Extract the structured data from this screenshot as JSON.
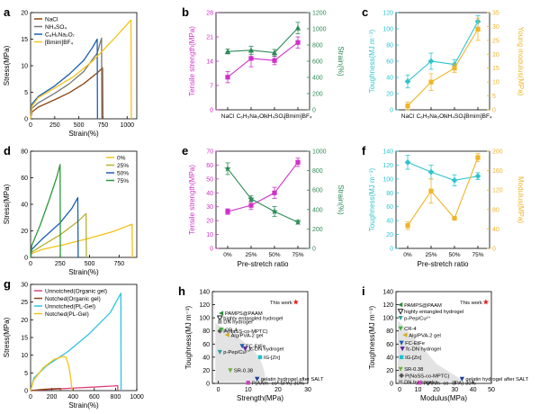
{
  "chart_data": [
    {
      "panel": "a",
      "type": "line",
      "xlabel": "Strain(%)",
      "ylabel": "Stress(MPa)",
      "xlim": [
        0,
        1100
      ],
      "ylim": [
        0,
        20
      ],
      "xticks": [
        0,
        250,
        500,
        750,
        1000
      ],
      "yticks": [
        0,
        5,
        10,
        15,
        20
      ],
      "legend": "top-left",
      "series": [
        {
          "name": "NaCl",
          "color": "#8b4513",
          "x": [
            0,
            15,
            80,
            250,
            400,
            550,
            700,
            745,
            748
          ],
          "y": [
            0,
            1.3,
            2.2,
            3.6,
            4.9,
            6.6,
            8.8,
            9.6,
            0
          ]
        },
        {
          "name": "NH₄SO₄",
          "color": "#777777",
          "x": [
            0,
            15,
            80,
            250,
            400,
            550,
            690,
            735,
            738
          ],
          "y": [
            0,
            2.0,
            3.0,
            4.8,
            6.6,
            8.9,
            12.4,
            15.2,
            0
          ]
        },
        {
          "name": "C₆H₅Na₃O₇",
          "color": "#1a5fb4",
          "x": [
            0,
            15,
            80,
            250,
            400,
            550,
            640,
            690,
            693
          ],
          "y": [
            0,
            2.8,
            4.2,
            6.2,
            8.4,
            11.0,
            13.4,
            15.0,
            0
          ]
        },
        {
          "name": "[Bmim]BF₄",
          "color": "#f5c218",
          "x": [
            0,
            15,
            80,
            250,
            450,
            650,
            850,
            1000,
            1040,
            1043
          ],
          "y": [
            0,
            2.4,
            4.0,
            5.8,
            8.0,
            11.0,
            14.8,
            17.8,
            18.6,
            0
          ]
        }
      ]
    },
    {
      "panel": "b",
      "type": "line",
      "categories": [
        "NaCl",
        "C₆H₅Na₃O₇",
        "NH₄SO₄",
        "[Bmim]BF₄"
      ],
      "ylabel": "Tensile strength(MPa)",
      "y2label": "Strain(%)",
      "ylim": [
        0,
        28
      ],
      "y2lim": [
        0,
        1200
      ],
      "yticks": [
        0,
        7,
        14,
        21,
        28
      ],
      "y2ticks": [
        0,
        200,
        400,
        600,
        800,
        1000,
        1200
      ],
      "series": [
        {
          "name": "Tensile strength",
          "axis": "left",
          "color": "#d030c8",
          "marker": "square",
          "values": [
            9.4,
            14.8,
            14.2,
            19.4
          ],
          "errors": [
            1.6,
            2.4,
            1.2,
            1.6
          ]
        },
        {
          "name": "Strain",
          "axis": "right",
          "color": "#2e8b57",
          "marker": "triangle",
          "values": [
            720,
            735,
            705,
            1010
          ],
          "errors": [
            30,
            50,
            40,
            70
          ]
        }
      ]
    },
    {
      "panel": "c",
      "type": "line",
      "categories": [
        "NaCl",
        "C₆H₅Na₃O₇",
        "NH₄SO₄",
        "[Bmim]BF₄"
      ],
      "ylabel": "Toughness(MJ m⁻³)",
      "y2label": "Young modulus(MPa)",
      "ylim": [
        0,
        120
      ],
      "y2lim": [
        0,
        35
      ],
      "yticks": [
        0,
        20,
        40,
        60,
        80,
        100,
        120
      ],
      "y2ticks": [
        0,
        5,
        10,
        15,
        20,
        25,
        30,
        35
      ],
      "series": [
        {
          "name": "Toughness",
          "axis": "left",
          "color": "#2ec4d0",
          "marker": "diamond",
          "values": [
            35,
            60,
            56,
            109
          ],
          "errors": [
            8,
            10,
            6,
            7
          ]
        },
        {
          "name": "Young modulus",
          "axis": "right",
          "color": "#f0b428",
          "marker": "square",
          "values": [
            1.4,
            10,
            15,
            29
          ],
          "errors": [
            1.4,
            3,
            1.5,
            4
          ]
        }
      ]
    },
    {
      "panel": "d",
      "type": "line",
      "xlabel": "Strain(%)",
      "ylabel": "Stress(MPa)",
      "xlim": [
        0,
        900
      ],
      "ylim": [
        0,
        80
      ],
      "xticks": [
        0,
        250,
        500,
        750
      ],
      "yticks": [
        0,
        20,
        40,
        60,
        80
      ],
      "legend": "top-right",
      "series": [
        {
          "name": "0%",
          "color": "#f5c218",
          "x": [
            0,
            10,
            100,
            300,
            500,
            700,
            860,
            863
          ],
          "y": [
            0,
            3,
            6,
            10,
            14.5,
            19.5,
            25,
            0
          ]
        },
        {
          "name": "25%",
          "color": "#b8b030",
          "x": [
            0,
            10,
            100,
            250,
            400,
            470,
            473
          ],
          "y": [
            0,
            4,
            9,
            17,
            27,
            33,
            0
          ]
        },
        {
          "name": "50%",
          "color": "#1a5fb4",
          "x": [
            0,
            10,
            100,
            250,
            350,
            400,
            403
          ],
          "y": [
            0,
            6,
            14,
            26,
            37,
            45,
            0
          ]
        },
        {
          "name": "75%",
          "color": "#2a9a3a",
          "x": [
            0,
            10,
            80,
            160,
            220,
            250,
            252
          ],
          "y": [
            0,
            9,
            24,
            44,
            60,
            70,
            0
          ]
        }
      ]
    },
    {
      "panel": "e",
      "type": "line",
      "categories": [
        "0%",
        "25%",
        "50%",
        "75%"
      ],
      "xlabel": "Pre-stretch ratio",
      "ylabel": "Tensile strength(MPa)",
      "y2label": "Strain(%)",
      "ylim": [
        0,
        70
      ],
      "y2lim": [
        0,
        1000
      ],
      "yticks": [
        0,
        10,
        20,
        30,
        40,
        50,
        60,
        70
      ],
      "y2ticks": [
        0,
        200,
        400,
        600,
        800,
        1000
      ],
      "series": [
        {
          "name": "Tensile strength",
          "axis": "left",
          "color": "#d030c8",
          "marker": "square",
          "values": [
            26.5,
            31,
            40,
            62
          ],
          "errors": [
            2,
            3,
            4,
            3
          ]
        },
        {
          "name": "Strain",
          "axis": "right",
          "color": "#2e8b57",
          "marker": "star",
          "values": [
            820,
            510,
            380,
            270
          ],
          "errors": [
            60,
            30,
            50,
            20
          ]
        }
      ]
    },
    {
      "panel": "f",
      "type": "line",
      "categories": [
        "0%",
        "25%",
        "50%",
        "75%"
      ],
      "xlabel": "Pre-stretch ratio",
      "ylabel": "Toughness(MJ m⁻³)",
      "y2label": "Modulus(MPa)",
      "ylim": [
        0,
        140
      ],
      "y2lim": [
        0,
        200
      ],
      "yticks": [
        0,
        20,
        40,
        60,
        80,
        100,
        120,
        140
      ],
      "y2ticks": [
        0,
        40,
        80,
        120,
        160,
        200
      ],
      "series": [
        {
          "name": "Toughness",
          "axis": "left",
          "color": "#2ec4d0",
          "marker": "diamond",
          "values": [
            124,
            110,
            98,
            104
          ],
          "errors": [
            10,
            10,
            8,
            5
          ]
        },
        {
          "name": "Modulus",
          "axis": "right",
          "color": "#f0b428",
          "marker": "square",
          "values": [
            47,
            118,
            62,
            187
          ],
          "errors": [
            8,
            25,
            3,
            8
          ]
        }
      ]
    },
    {
      "panel": "g",
      "type": "line",
      "xlabel": "Strain(%)",
      "ylabel": "Stress(MPa)",
      "xlim": [
        0,
        1000
      ],
      "ylim": [
        0,
        30
      ],
      "xticks": [
        0,
        200,
        400,
        600,
        800,
        1000
      ],
      "yticks": [
        0,
        5,
        10,
        15,
        20,
        25,
        30
      ],
      "legend": "top-left",
      "series": [
        {
          "name": "Unnotched(Organic gel)",
          "color": "#e0407a",
          "x": [
            0,
            200,
            400,
            600,
            780,
            820,
            822
          ],
          "y": [
            0,
            0.4,
            0.7,
            1.0,
            1.3,
            1.4,
            0
          ]
        },
        {
          "name": "Notched(Organic gel)",
          "color": "#8b4513",
          "x": [
            0,
            100,
            200,
            280,
            282
          ],
          "y": [
            0,
            0.3,
            0.5,
            0.6,
            0
          ]
        },
        {
          "name": "Unnotched(PL-Gel)",
          "color": "#2ec4e0",
          "x": [
            0,
            30,
            150,
            350,
            550,
            750,
            850,
            852
          ],
          "y": [
            0,
            3.5,
            7,
            11,
            16,
            22,
            27.5,
            0
          ]
        },
        {
          "name": "Notched(PL-Gel)",
          "color": "#f5c218",
          "x": [
            0,
            30,
            120,
            220,
            300,
            330,
            360,
            380,
            390
          ],
          "y": [
            0,
            3,
            6.5,
            8.8,
            9.6,
            9.6,
            7,
            3,
            0
          ]
        }
      ]
    },
    {
      "panel": "h",
      "type": "scatter",
      "xlabel": "Strength(MPa)",
      "ylabel": "Toughness(MJ m⁻³)",
      "xlim": [
        -2,
        30
      ],
      "ylim": [
        0,
        140
      ],
      "xticks": [
        0,
        10,
        20,
        30
      ],
      "yticks": [
        0,
        20,
        40,
        60,
        80,
        100,
        120,
        140
      ],
      "legend": "top-left",
      "points": [
        {
          "label": "This work",
          "x": 26,
          "y": 124,
          "color": "#e02020",
          "marker": "star"
        },
        {
          "label": "PAMPS@PAAM",
          "x": 1,
          "y": 107,
          "color": "#2a8a3a",
          "marker": "tri-left"
        },
        {
          "label": "highly entangled hydrogel",
          "x": 0.5,
          "y": 100,
          "color": "#222222",
          "marker": "tri-down-open"
        },
        {
          "label": "DN hydrogel",
          "x": 0.5,
          "y": 94,
          "color": "#999999",
          "marker": "square"
        },
        {
          "label": "P(NaSS-co-MPTC)",
          "x": 0.5,
          "y": 80,
          "color": "#555555",
          "marker": "diamond"
        },
        {
          "label": "CR-4",
          "x": 1,
          "y": 82,
          "color": "#40b040",
          "marker": "tri-down"
        },
        {
          "label": "Alg/PVA-2 gel",
          "x": 3,
          "y": 74,
          "color": "#d0b020",
          "marker": "tri-left"
        },
        {
          "label": "FC-EtFe",
          "x": 8,
          "y": 57,
          "color": "#1a5fb4",
          "marker": "tri-down"
        },
        {
          "label": "fc-DN hydrogel",
          "x": 9,
          "y": 53,
          "color": "#6020a0",
          "marker": "tri-down"
        },
        {
          "label": "p-Pep/Cu²⁺",
          "x": 0.5,
          "y": 48,
          "color": "#30a0a0",
          "marker": "tri-down"
        },
        {
          "label": "IG-[Zn]",
          "x": 14,
          "y": 40,
          "color": "#20c0d0",
          "marker": "square"
        },
        {
          "label": "SR-0.38",
          "x": 4,
          "y": 20,
          "color": "#70b040",
          "marker": "tri-down"
        },
        {
          "label": "gelatin hydrogel after SALT",
          "x": 13,
          "y": 7,
          "color": "#1a3f9a",
          "marker": "tri-down"
        },
        {
          "label": "P(AAm- co -SPA)-30%",
          "x": 10,
          "y": 1,
          "color": "#d040c0",
          "marker": "square"
        }
      ]
    },
    {
      "panel": "i",
      "type": "scatter",
      "xlabel": "Modulus(MPa)",
      "ylabel": "Toughness(MJ m⁻³)",
      "xlim": [
        -2,
        50
      ],
      "ylim": [
        0,
        140
      ],
      "xticks": [
        0,
        10,
        20,
        30,
        40,
        50
      ],
      "yticks": [
        0,
        20,
        40,
        60,
        80,
        100,
        120,
        140
      ],
      "legend": "top-left",
      "points": [
        {
          "label": "This work",
          "x": 47,
          "y": 124,
          "color": "#e02020",
          "marker": "star"
        },
        {
          "label": "gelatin hydrogel after SALT",
          "x": 34,
          "y": 7,
          "color": "#1a3f9a",
          "marker": "tri-down"
        },
        {
          "label": "PAMPS@PAAM",
          "x": 0.5,
          "y": 120,
          "color": "#2a8a3a",
          "marker": "tri-left"
        },
        {
          "label": "highly entangled hydrogel",
          "x": 0.5,
          "y": 110,
          "color": "#222222",
          "marker": "tri-down-open"
        },
        {
          "label": "p-Pep/Cu²⁺",
          "x": 0.5,
          "y": 100,
          "color": "#30a0a0",
          "marker": "tri-down"
        },
        {
          "label": "CR-4",
          "x": 0.5,
          "y": 84,
          "color": "#40b040",
          "marker": "tri-down"
        },
        {
          "label": "Alg/PVA-2 gel",
          "x": 3,
          "y": 74,
          "color": "#d0b020",
          "marker": "tri-left"
        },
        {
          "label": "FC-EtFe",
          "x": 1,
          "y": 62,
          "color": "#1a5fb4",
          "marker": "tri-down"
        },
        {
          "label": "fc-DN hydrogel",
          "x": 1.5,
          "y": 53,
          "color": "#6020a0",
          "marker": "tri-down"
        },
        {
          "label": "IG-[Zn]",
          "x": 1,
          "y": 40,
          "color": "#20c0d0",
          "marker": "square"
        },
        {
          "label": "SR-0.38",
          "x": 0.5,
          "y": 22,
          "color": "#70b040",
          "marker": "tri-down"
        },
        {
          "label": "P(NaSS-co-MPTC)",
          "x": 1,
          "y": 12,
          "color": "#555555",
          "marker": "diamond"
        },
        {
          "label": "DN hydrogel",
          "x": 0.5,
          "y": 2,
          "color": "#999999",
          "marker": "square"
        },
        {
          "label": "P(AAm- co -SPA)-30%",
          "x": 11,
          "y": 1,
          "color": "#d040c0",
          "marker": "square"
        }
      ]
    }
  ]
}
